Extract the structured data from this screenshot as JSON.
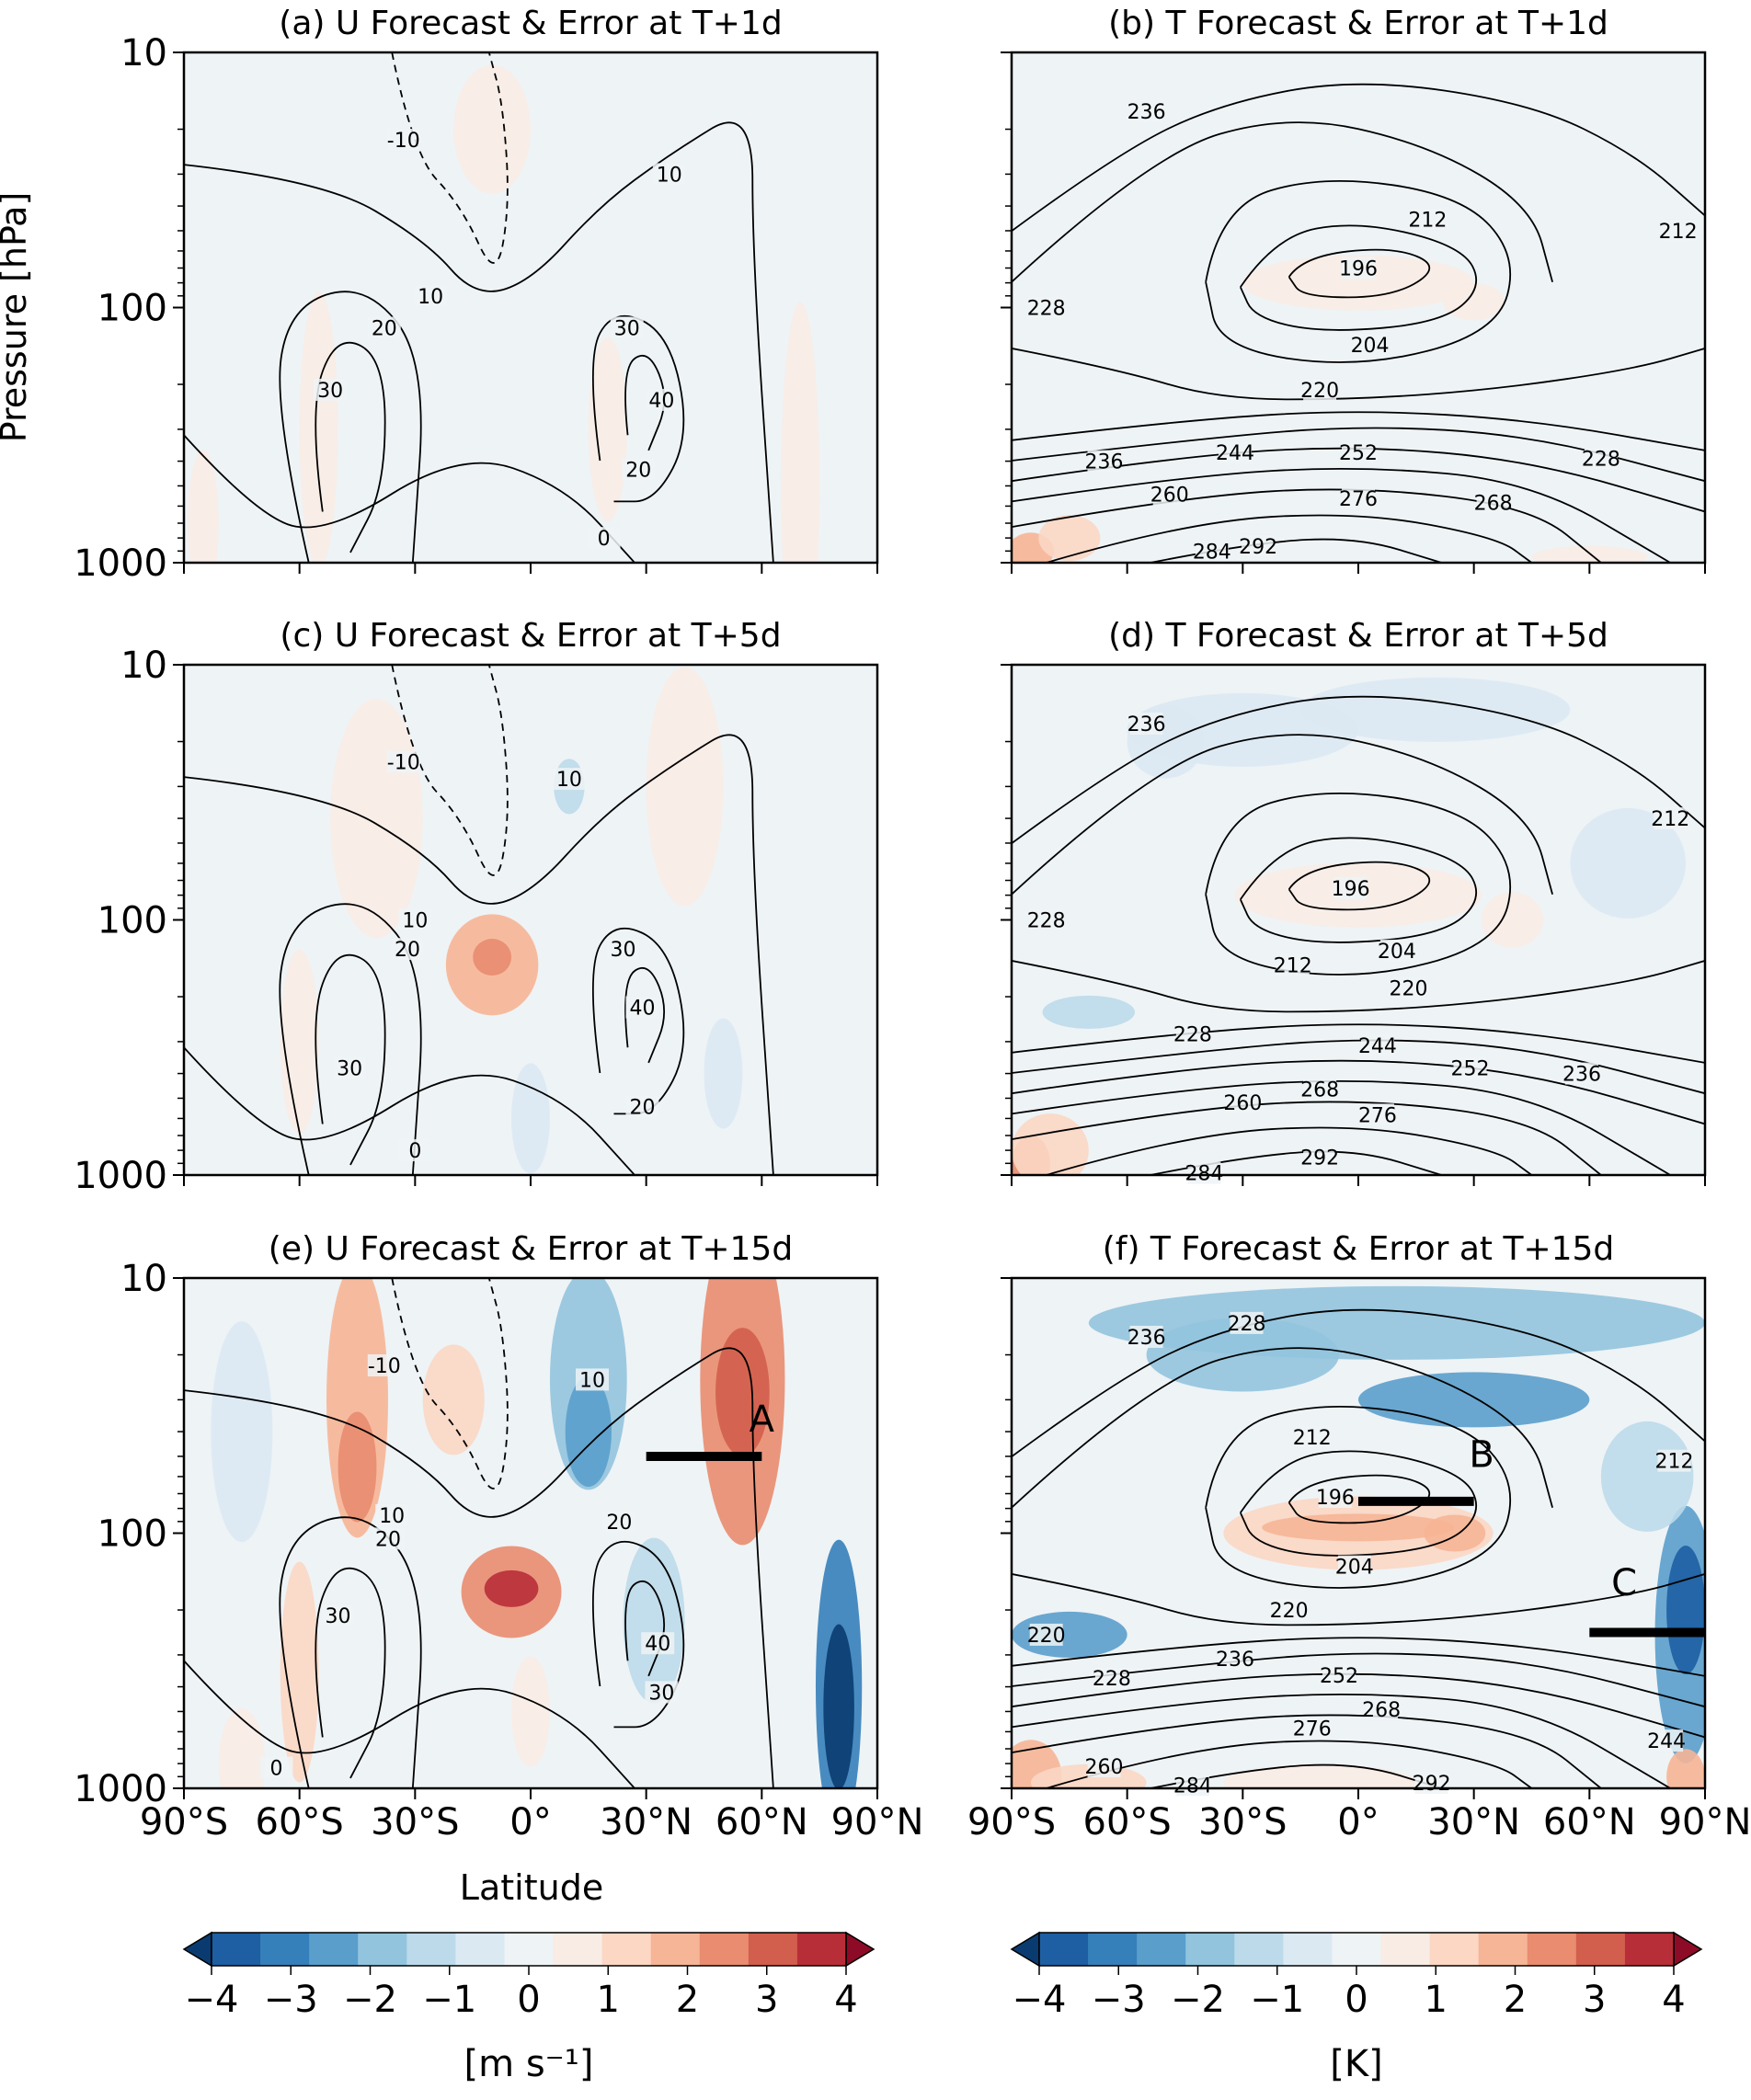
{
  "figure": {
    "ylabel": "Pressure [hPa]",
    "xlabel": "Latitude"
  },
  "chart_data": [
    {
      "type": "heatmap",
      "panel": "a",
      "title": "(a) U Forecast & Error at T+1d",
      "field_contours": "zonal wind U",
      "shading": "forecast error",
      "x_ticks": [
        "90°S",
        "60°S",
        "30°S",
        "0°",
        "30°N",
        "60°N",
        "90°N"
      ],
      "y_ticks": [
        "10",
        "100",
        "1000"
      ],
      "xlim": [
        -90,
        90
      ],
      "ylim": [
        1000,
        10
      ],
      "y_scale": "log",
      "contour_levels_labeled": [
        "-10",
        "0",
        "10",
        "20",
        "30",
        "40"
      ],
      "contour_labels": [
        {
          "text": "-10",
          "lat": -33,
          "p": 22
        },
        {
          "text": "10",
          "lat": 36,
          "p": 30
        },
        {
          "text": "10",
          "lat": -26,
          "p": 90
        },
        {
          "text": "20",
          "lat": -38,
          "p": 120
        },
        {
          "text": "30",
          "lat": -52,
          "p": 210
        },
        {
          "text": "30",
          "lat": 25,
          "p": 120
        },
        {
          "text": "40",
          "lat": 34,
          "p": 230
        },
        {
          "text": "20",
          "lat": 28,
          "p": 430
        },
        {
          "text": "0",
          "lat": 19,
          "p": 800
        }
      ],
      "error_max_abs": 0.5
    },
    {
      "type": "heatmap",
      "panel": "b",
      "title": "(b) T Forecast & Error at T+1d",
      "field_contours": "temperature T",
      "shading": "forecast error",
      "x_ticks": [
        "90°S",
        "60°S",
        "30°S",
        "0°",
        "30°N",
        "60°N",
        "90°N"
      ],
      "y_ticks": [
        "10",
        "100",
        "1000"
      ],
      "xlim": [
        -90,
        90
      ],
      "ylim": [
        1000,
        10
      ],
      "y_scale": "log",
      "contour_levels_labeled": [
        "196",
        "204",
        "212",
        "220",
        "228",
        "236",
        "244",
        "252",
        "260",
        "268",
        "276",
        "284",
        "292"
      ],
      "contour_labels": [
        {
          "text": "236",
          "lat": -55,
          "p": 17
        },
        {
          "text": "212",
          "lat": 18,
          "p": 45
        },
        {
          "text": "212",
          "lat": 83,
          "p": 50
        },
        {
          "text": "196",
          "lat": 0,
          "p": 70
        },
        {
          "text": "228",
          "lat": -81,
          "p": 100
        },
        {
          "text": "204",
          "lat": 3,
          "p": 140
        },
        {
          "text": "220",
          "lat": -10,
          "p": 210
        },
        {
          "text": "236",
          "lat": -66,
          "p": 400
        },
        {
          "text": "244",
          "lat": -32,
          "p": 370
        },
        {
          "text": "252",
          "lat": 0,
          "p": 370
        },
        {
          "text": "228",
          "lat": 63,
          "p": 390
        },
        {
          "text": "260",
          "lat": -49,
          "p": 540
        },
        {
          "text": "276",
          "lat": 0,
          "p": 560
        },
        {
          "text": "268",
          "lat": 35,
          "p": 580
        },
        {
          "text": "284",
          "lat": -38,
          "p": 900
        },
        {
          "text": "292",
          "lat": -26,
          "p": 860
        }
      ],
      "error_max_abs": 1
    },
    {
      "type": "heatmap",
      "panel": "c",
      "title": "(c) U Forecast & Error at T+5d",
      "field_contours": "zonal wind U",
      "shading": "forecast error",
      "x_ticks": [
        "90°S",
        "60°S",
        "30°S",
        "0°",
        "30°N",
        "60°N",
        "90°N"
      ],
      "y_ticks": [
        "10",
        "100",
        "1000"
      ],
      "xlim": [
        -90,
        90
      ],
      "ylim": [
        1000,
        10
      ],
      "y_scale": "log",
      "contour_levels_labeled": [
        "-10",
        "0",
        "10",
        "20",
        "30",
        "40"
      ],
      "contour_labels": [
        {
          "text": "-10",
          "lat": -33,
          "p": 24
        },
        {
          "text": "10",
          "lat": 10,
          "p": 28
        },
        {
          "text": "10",
          "lat": -30,
          "p": 100
        },
        {
          "text": "20",
          "lat": -32,
          "p": 130
        },
        {
          "text": "30",
          "lat": -47,
          "p": 380
        },
        {
          "text": "30",
          "lat": 24,
          "p": 130
        },
        {
          "text": "40",
          "lat": 29,
          "p": 220
        },
        {
          "text": "20",
          "lat": 29,
          "p": 540
        },
        {
          "text": "0",
          "lat": -30,
          "p": 800
        }
      ],
      "error_max_abs": 2
    },
    {
      "type": "heatmap",
      "panel": "d",
      "title": "(d) T Forecast & Error at T+5d",
      "field_contours": "temperature T",
      "shading": "forecast error",
      "x_ticks": [
        "90°S",
        "60°S",
        "30°S",
        "0°",
        "30°N",
        "60°N",
        "90°N"
      ],
      "y_ticks": [
        "10",
        "100",
        "1000"
      ],
      "xlim": [
        -90,
        90
      ],
      "ylim": [
        1000,
        10
      ],
      "y_scale": "log",
      "contour_levels_labeled": [
        "196",
        "204",
        "212",
        "220",
        "228",
        "236",
        "244",
        "252",
        "260",
        "268",
        "276",
        "284",
        "292"
      ],
      "contour_labels": [
        {
          "text": "236",
          "lat": -55,
          "p": 17
        },
        {
          "text": "212",
          "lat": 81,
          "p": 40
        },
        {
          "text": "196",
          "lat": -2,
          "p": 75
        },
        {
          "text": "228",
          "lat": -81,
          "p": 100
        },
        {
          "text": "204",
          "lat": 10,
          "p": 132
        },
        {
          "text": "212",
          "lat": -17,
          "p": 150
        },
        {
          "text": "220",
          "lat": 13,
          "p": 185
        },
        {
          "text": "228",
          "lat": -43,
          "p": 280
        },
        {
          "text": "244",
          "lat": 5,
          "p": 310
        },
        {
          "text": "252",
          "lat": 29,
          "p": 380
        },
        {
          "text": "236",
          "lat": 58,
          "p": 400
        },
        {
          "text": "260",
          "lat": -30,
          "p": 520
        },
        {
          "text": "268",
          "lat": -10,
          "p": 460
        },
        {
          "text": "276",
          "lat": 5,
          "p": 580
        },
        {
          "text": "284",
          "lat": -40,
          "p": 980
        },
        {
          "text": "292",
          "lat": -10,
          "p": 850
        }
      ],
      "error_max_abs": 2.5
    },
    {
      "type": "heatmap",
      "panel": "e",
      "title": "(e) U Forecast & Error at T+15d",
      "field_contours": "zonal wind U",
      "shading": "forecast error",
      "x_ticks": [
        "90°S",
        "60°S",
        "30°S",
        "0°",
        "30°N",
        "60°N",
        "90°N"
      ],
      "y_ticks": [
        "10",
        "100",
        "1000"
      ],
      "xlim": [
        -90,
        90
      ],
      "ylim": [
        1000,
        10
      ],
      "y_scale": "log",
      "contour_levels_labeled": [
        "-10",
        "0",
        "10",
        "20",
        "30",
        "40"
      ],
      "contour_labels": [
        {
          "text": "-10",
          "lat": -38,
          "p": 22
        },
        {
          "text": "10",
          "lat": 16,
          "p": 25
        },
        {
          "text": "10",
          "lat": -36,
          "p": 85
        },
        {
          "text": "20",
          "lat": -37,
          "p": 105
        },
        {
          "text": "30",
          "lat": -50,
          "p": 210
        },
        {
          "text": "20",
          "lat": 23,
          "p": 90
        },
        {
          "text": "40",
          "lat": 33,
          "p": 270
        },
        {
          "text": "30",
          "lat": 34,
          "p": 420
        },
        {
          "text": "0",
          "lat": -66,
          "p": 830
        }
      ],
      "annotations": [
        {
          "text": "A",
          "lat": 60,
          "p": 40
        },
        {
          "type": "bar",
          "lat_from": 30,
          "lat_to": 60,
          "p": 50
        }
      ],
      "error_max_abs": 4
    },
    {
      "type": "heatmap",
      "panel": "f",
      "title": "(f) T Forecast & Error at T+15d",
      "field_contours": "temperature T",
      "shading": "forecast error",
      "x_ticks": [
        "90°S",
        "60°S",
        "30°S",
        "0°",
        "30°N",
        "60°N",
        "90°N"
      ],
      "y_ticks": [
        "10",
        "100",
        "1000"
      ],
      "xlim": [
        -90,
        90
      ],
      "ylim": [
        1000,
        10
      ],
      "y_scale": "log",
      "contour_levels_labeled": [
        "196",
        "204",
        "212",
        "220",
        "228",
        "236",
        "244",
        "252",
        "260",
        "268",
        "276",
        "284",
        "292"
      ],
      "contour_labels": [
        {
          "text": "236",
          "lat": -55,
          "p": 17
        },
        {
          "text": "228",
          "lat": -29,
          "p": 15
        },
        {
          "text": "212",
          "lat": -12,
          "p": 42
        },
        {
          "text": "212",
          "lat": 82,
          "p": 52
        },
        {
          "text": "196",
          "lat": -6,
          "p": 72
        },
        {
          "text": "204",
          "lat": -1,
          "p": 135
        },
        {
          "text": "220",
          "lat": -81,
          "p": 250
        },
        {
          "text": "220",
          "lat": -18,
          "p": 200
        },
        {
          "text": "228",
          "lat": -64,
          "p": 370
        },
        {
          "text": "236",
          "lat": -32,
          "p": 310
        },
        {
          "text": "252",
          "lat": -5,
          "p": 360
        },
        {
          "text": "268",
          "lat": 6,
          "p": 490
        },
        {
          "text": "276",
          "lat": -12,
          "p": 580
        },
        {
          "text": "244",
          "lat": 80,
          "p": 650
        },
        {
          "text": "260",
          "lat": -66,
          "p": 820
        },
        {
          "text": "284",
          "lat": -43,
          "p": 970
        },
        {
          "text": "292",
          "lat": 19,
          "p": 950
        }
      ],
      "annotations": [
        {
          "text": "B",
          "lat": 32,
          "p": 55
        },
        {
          "type": "bar",
          "lat_from": 0,
          "lat_to": 30,
          "p": 75
        },
        {
          "text": "C",
          "lat": 69,
          "p": 175
        },
        {
          "type": "bar",
          "lat_from": 60,
          "lat_to": 90,
          "p": 245
        }
      ],
      "error_max_abs": 4
    }
  ],
  "colorbars": [
    {
      "label": "[m s⁻¹]",
      "ticks": [
        "−4",
        "−3",
        "−2",
        "−1",
        "0",
        "1",
        "2",
        "3",
        "4"
      ],
      "range": [
        -4,
        4
      ],
      "extend": "both",
      "cmap": "RdBu_r"
    },
    {
      "label": "[K]",
      "ticks": [
        "−4",
        "−3",
        "−2",
        "−1",
        "0",
        "1",
        "2",
        "3",
        "4"
      ],
      "range": [
        -4,
        4
      ],
      "extend": "both",
      "cmap": "RdBu_r"
    }
  ],
  "colors": {
    "cmap": [
      "#0a3b70",
      "#1d5fa2",
      "#3580ba",
      "#5a9ecc",
      "#92c4de",
      "#bcdaea",
      "#dbe9f3",
      "#eef3f6",
      "#f8ece5",
      "#fbd7c4",
      "#f6b596",
      "#e98c6f",
      "#d25e4d",
      "#b82e38",
      "#8d0b26"
    ],
    "contour": "#000000",
    "bar": "#000000"
  }
}
